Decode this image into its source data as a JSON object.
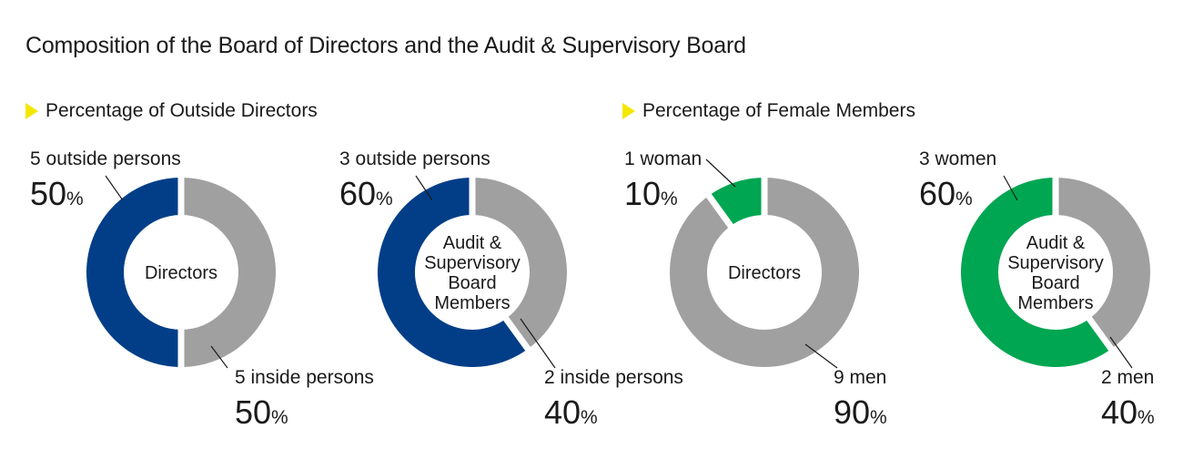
{
  "title": "Composition of the Board of Directors and the Audit & Supervisory Board",
  "sections": {
    "outside": "Percentage of Outside Directors",
    "female": "Percentage of Female Members"
  },
  "colors": {
    "navy": "#023e87",
    "gray": "#a0a0a0",
    "green": "#00a651",
    "yellow": "#f5e600"
  },
  "pct_unit": "%",
  "chart_data": [
    {
      "type": "pie",
      "title": "Directors",
      "center_lines": [
        "Directors"
      ],
      "series": [
        {
          "label": "5 outside persons",
          "value": 50,
          "pct_text": "50",
          "color": "#023e87"
        },
        {
          "label": "5 inside persons",
          "value": 50,
          "pct_text": "50",
          "color": "#a0a0a0"
        }
      ]
    },
    {
      "type": "pie",
      "title": "Audit & Supervisory Board Members",
      "center_lines": [
        "Audit &",
        "Supervisory",
        "Board",
        "Members"
      ],
      "series": [
        {
          "label": "3 outside persons",
          "value": 60,
          "pct_text": "60",
          "color": "#023e87"
        },
        {
          "label": "2 inside persons",
          "value": 40,
          "pct_text": "40",
          "color": "#a0a0a0"
        }
      ]
    },
    {
      "type": "pie",
      "title": "Directors",
      "center_lines": [
        "Directors"
      ],
      "series": [
        {
          "label": "1 woman",
          "value": 10,
          "pct_text": "10",
          "color": "#00a651"
        },
        {
          "label": "9 men",
          "value": 90,
          "pct_text": "90",
          "color": "#a0a0a0"
        }
      ]
    },
    {
      "type": "pie",
      "title": "Audit & Supervisory Board Members",
      "center_lines": [
        "Audit &",
        "Supervisory",
        "Board",
        "Members"
      ],
      "series": [
        {
          "label": "3 women",
          "value": 60,
          "pct_text": "60",
          "color": "#00a651"
        },
        {
          "label": "2 men",
          "value": 40,
          "pct_text": "40",
          "color": "#a0a0a0"
        }
      ]
    }
  ]
}
